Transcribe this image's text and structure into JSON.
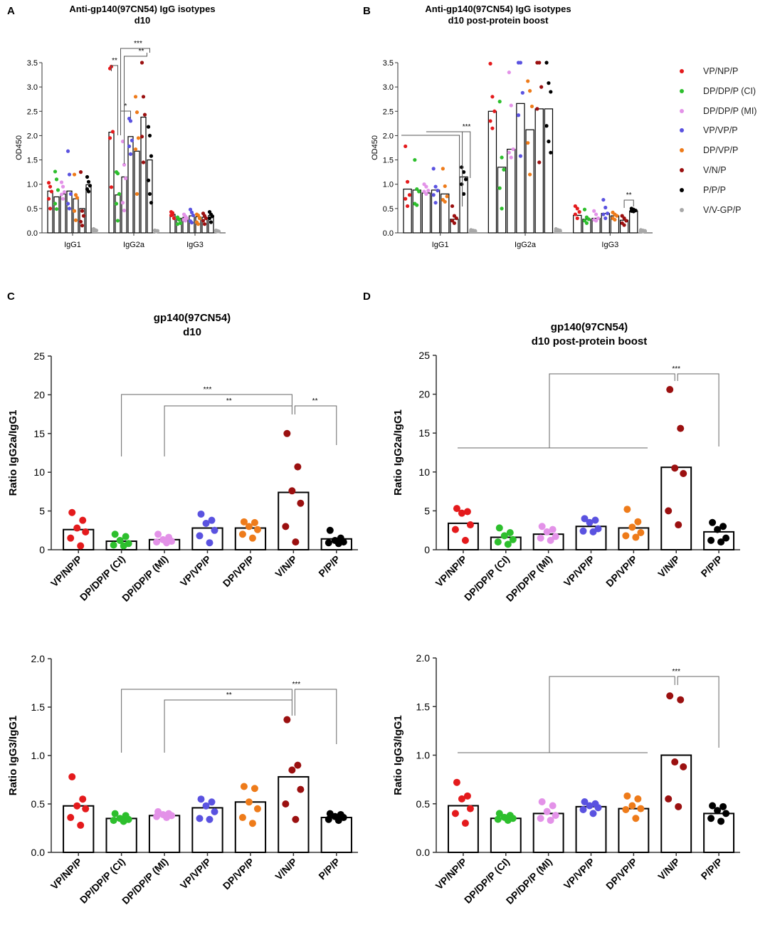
{
  "groups": [
    {
      "name": "VP/NP/P",
      "color": "#e41a1c"
    },
    {
      "name": "DP/DP/P (CI)",
      "color": "#2dbf2d"
    },
    {
      "name": "DP/DP/P (MI)",
      "color": "#e392e8"
    },
    {
      "name": "VP/VP/P",
      "color": "#5a52e0"
    },
    {
      "name": "DP/VP/P",
      "color": "#ee7b1a"
    },
    {
      "name": "V/N/P",
      "color": "#9b1010"
    },
    {
      "name": "P/P/P",
      "color": "#000000"
    },
    {
      "name": "V/V-GP/P",
      "color": "#a8a8a8"
    }
  ],
  "chart_data": [
    {
      "panel": "A",
      "type": "bar",
      "title": "Anti-gp140(97CN54) IgG isotypes",
      "subtitle": "d10",
      "ylabel": "OD450",
      "ylim": [
        0,
        3.5
      ],
      "yticks": [
        "0.0",
        "0.5",
        "1.0",
        "1.5",
        "2.0",
        "2.5",
        "3.0",
        "3.5"
      ],
      "categories": [
        "IgG1",
        "IgG2a",
        "IgG3"
      ],
      "series": [
        {
          "name": "VP/NP/P",
          "values": [
            0.86,
            2.07,
            0.38
          ],
          "points": [
            [
              1.03,
              0.95,
              0.85,
              0.7,
              0.5
            ],
            [
              3.38,
              3.42,
              2.08,
              1.95,
              0.94
            ],
            [
              0.43,
              0.37,
              0.3,
              0.36,
              0.41
            ]
          ]
        },
        {
          "name": "DP/DP/P (CI)",
          "values": [
            0.74,
            0.78,
            0.3
          ],
          "points": [
            [
              1.26,
              1.1,
              0.88,
              0.6,
              0.49
            ],
            [
              1.25,
              1.22,
              0.8,
              0.6,
              0.25
            ],
            [
              0.32,
              0.28,
              0.2,
              0.18,
              0.27
            ]
          ]
        },
        {
          "name": "DP/DP/P (MI)",
          "values": [
            0.8,
            1.15,
            0.32
          ],
          "points": [
            [
              1.04,
              0.95,
              0.84,
              0.79,
              0.7
            ],
            [
              1.88,
              1.4,
              1.12,
              0.62,
              0.46
            ],
            [
              0.38,
              0.34,
              0.3,
              0.27,
              0.25
            ]
          ]
        },
        {
          "name": "VP/VP/P",
          "values": [
            0.86,
            1.98,
            0.35
          ],
          "points": [
            [
              1.68,
              1.2,
              0.8,
              0.6,
              0.5
            ],
            [
              2.35,
              2.3,
              1.9,
              1.78,
              1.62
            ],
            [
              0.48,
              0.42,
              0.36,
              0.24,
              0.21
            ]
          ]
        },
        {
          "name": "DP/VP/P",
          "values": [
            0.7,
            1.68,
            0.33
          ],
          "points": [
            [
              1.2,
              0.78,
              0.72,
              0.45,
              0.26
            ],
            [
              2.8,
              2.48,
              1.95,
              1.72,
              0.8
            ],
            [
              0.38,
              0.36,
              0.3,
              0.22,
              0.18
            ]
          ]
        },
        {
          "name": "V/N/P",
          "values": [
            0.5,
            2.38,
            0.32
          ],
          "points": [
            [
              1.25,
              0.45,
              0.35,
              0.23,
              0.15
            ],
            [
              3.5,
              2.8,
              2.43,
              1.98,
              1.45
            ],
            [
              0.4,
              0.35,
              0.3,
              0.25,
              0.18
            ]
          ]
        },
        {
          "name": "P/P/P",
          "values": [
            0.99,
            1.5,
            0.36
          ],
          "points": [
            [
              1.15,
              1.05,
              0.97,
              0.9,
              0.85
            ],
            [
              2.18,
              2.0,
              1.58,
              1.08,
              0.8,
              0.62
            ],
            [
              0.43,
              0.38,
              0.34,
              0.3,
              0.22
            ]
          ]
        },
        {
          "name": "V/V-GP/P",
          "values": [
            0.05,
            0.04,
            0.03
          ],
          "points": [
            [
              0.08,
              0.06,
              0.05,
              0.04,
              0.05
            ],
            [
              0.05,
              0.04,
              0.04,
              0.05,
              0.03
            ],
            [
              0.05,
              0.04,
              0.03,
              0.04,
              0.03
            ]
          ]
        }
      ],
      "significance": [
        "**",
        "***",
        "**",
        "*"
      ]
    },
    {
      "panel": "B",
      "type": "bar",
      "title": "Anti-gp140(97CN54) IgG isotypes",
      "subtitle": "d10 post-protein boost",
      "ylabel": "OD450",
      "ylim": [
        0,
        3.5
      ],
      "yticks": [
        "0.0",
        "0.5",
        "1.0",
        "1.5",
        "2.0",
        "2.5",
        "3.0",
        "3.5"
      ],
      "categories": [
        "IgG1",
        "IgG2a",
        "IgG3"
      ],
      "series": [
        {
          "name": "VP/NP/P",
          "values": [
            0.9,
            2.5,
            0.36
          ],
          "points": [
            [
              1.78,
              1.05,
              0.78,
              0.7,
              0.55
            ],
            [
              3.48,
              2.8,
              2.5,
              2.3,
              2.15
            ],
            [
              0.55,
              0.5,
              0.43,
              0.38,
              0.3
            ]
          ]
        },
        {
          "name": "DP/DP/P (CI)",
          "values": [
            0.88,
            1.35,
            0.28
          ],
          "points": [
            [
              1.5,
              0.9,
              0.85,
              0.6,
              0.57
            ],
            [
              2.7,
              1.55,
              1.3,
              0.92,
              0.5
            ],
            [
              0.48,
              0.32,
              0.28,
              0.25,
              0.2
            ]
          ]
        },
        {
          "name": "DP/DP/P (MI)",
          "values": [
            0.82,
            1.72,
            0.3
          ],
          "points": [
            [
              1.0,
              0.95,
              0.87,
              0.85,
              0.8
            ],
            [
              3.3,
              2.62,
              1.72,
              1.65,
              1.55
            ],
            [
              0.45,
              0.38,
              0.3,
              0.27,
              0.25
            ]
          ]
        },
        {
          "name": "VP/VP/P",
          "values": [
            0.88,
            2.66,
            0.4
          ],
          "points": [
            [
              1.32,
              0.95,
              0.87,
              0.78,
              0.62
            ],
            [
              3.5,
              3.5,
              2.88,
              2.42,
              1.58
            ],
            [
              0.68,
              0.52,
              0.4,
              0.38,
              0.3
            ]
          ]
        },
        {
          "name": "DP/VP/P",
          "values": [
            0.8,
            2.12,
            0.35
          ],
          "points": [
            [
              1.32,
              0.96,
              0.75,
              0.68,
              0.64
            ],
            [
              3.12,
              2.92,
              2.6,
              1.85,
              1.2
            ],
            [
              0.42,
              0.38,
              0.35,
              0.3,
              0.27
            ]
          ]
        },
        {
          "name": "V/N/P",
          "values": [
            0.28,
            2.55,
            0.26
          ],
          "points": [
            [
              0.55,
              0.35,
              0.3,
              0.25,
              0.2
            ],
            [
              3.5,
              3.5,
              3.0,
              2.55,
              1.45
            ],
            [
              0.35,
              0.3,
              0.25,
              0.2,
              0.16
            ]
          ]
        },
        {
          "name": "P/P/P",
          "values": [
            1.15,
            2.55,
            0.45
          ],
          "points": [
            [
              1.35,
              1.25,
              1.1,
              1.0,
              0.8
            ],
            [
              3.5,
              3.08,
              2.9,
              2.2,
              1.88,
              1.65
            ],
            [
              0.5,
              0.48,
              0.46,
              0.45,
              0.44
            ]
          ]
        },
        {
          "name": "V/V-GP/P",
          "values": [
            0.05,
            0.06,
            0.05
          ],
          "points": [
            [
              0.06,
              0.05,
              0.04,
              0.05,
              0.04
            ],
            [
              0.08,
              0.06,
              0.05,
              0.04,
              0.05
            ],
            [
              0.06,
              0.05,
              0.04,
              0.05,
              0.03
            ]
          ]
        }
      ],
      "significance": [
        "***",
        "**"
      ]
    },
    {
      "panel": "C",
      "type": "bar",
      "title": "gp140(97CN54)",
      "subtitle": "d10",
      "ylabel": "Ratio IgG2a/IgG1",
      "ylim": [
        0,
        25
      ],
      "yticks": [
        "0",
        "5",
        "10",
        "15",
        "20",
        "25"
      ],
      "categories": [
        "VP/NP/P",
        "DP/DP/P (CI)",
        "DP/DP/P (MI)",
        "VP/VP/P",
        "DP/VP/P",
        "V/N/P",
        "P/P/P"
      ],
      "values": [
        2.6,
        1.1,
        1.3,
        2.8,
        2.8,
        7.4,
        1.4
      ],
      "points": [
        [
          4.8,
          3.8,
          2.8,
          2.3,
          1.5,
          0.5
        ],
        [
          2.0,
          1.7,
          1.2,
          0.8,
          0.6,
          0.5
        ],
        [
          2.0,
          1.6,
          1.3,
          1.1,
          1.0,
          0.9
        ],
        [
          4.6,
          3.8,
          3.4,
          2.5,
          1.8,
          0.9
        ],
        [
          3.6,
          3.5,
          3.0,
          2.6,
          2.0,
          1.5
        ],
        [
          15.0,
          10.7,
          7.6,
          6.0,
          3.0,
          1.0
        ],
        [
          2.5,
          1.5,
          1.2,
          1.0,
          0.9,
          0.8
        ]
      ],
      "significance": [
        "***",
        "**",
        "**"
      ]
    },
    {
      "panel": "D",
      "type": "bar",
      "title": "gp140(97CN54)",
      "subtitle": "d10 post-protein boost",
      "ylabel": "Ratio IgG2a/IgG1",
      "ylim": [
        0,
        25
      ],
      "yticks": [
        "0",
        "5",
        "10",
        "15",
        "20",
        "25"
      ],
      "categories": [
        "VP/NP/P",
        "DP/DP/P (CI)",
        "DP/DP/P (MI)",
        "VP/VP/P",
        "DP/VP/P",
        "V/N/P",
        "P/P/P"
      ],
      "values": [
        3.4,
        1.6,
        2.0,
        3.0,
        2.8,
        10.6,
        2.3
      ],
      "points": [
        [
          5.3,
          4.9,
          4.7,
          3.2,
          2.6,
          1.2
        ],
        [
          2.8,
          2.2,
          1.8,
          1.3,
          1.0,
          0.7
        ],
        [
          3.0,
          2.6,
          2.3,
          1.7,
          1.5,
          1.2
        ],
        [
          4.0,
          3.8,
          3.5,
          2.7,
          2.4,
          2.3
        ],
        [
          5.2,
          3.6,
          2.9,
          2.2,
          1.8,
          1.6
        ],
        [
          20.6,
          15.6,
          10.5,
          9.8,
          5.0,
          3.2
        ],
        [
          3.5,
          3.0,
          2.6,
          1.5,
          1.2,
          1.0
        ]
      ],
      "significance": [
        "***"
      ]
    },
    {
      "panel": "C2",
      "type": "bar",
      "title": "",
      "subtitle": "",
      "ylabel": "Ratio IgG3/IgG1",
      "ylim": [
        0,
        2.0
      ],
      "yticks": [
        "0.0",
        "0.5",
        "1.0",
        "1.5",
        "2.0"
      ],
      "categories": [
        "VP/NP/P",
        "DP/DP/P (CI)",
        "DP/DP/P (MI)",
        "VP/VP/P",
        "DP/VP/P",
        "V/N/P",
        "P/P/P"
      ],
      "values": [
        0.48,
        0.35,
        0.38,
        0.46,
        0.52,
        0.78,
        0.36
      ],
      "points": [
        [
          0.78,
          0.55,
          0.48,
          0.45,
          0.36,
          0.28
        ],
        [
          0.4,
          0.38,
          0.35,
          0.34,
          0.33,
          0.32
        ],
        [
          0.42,
          0.4,
          0.39,
          0.38,
          0.37,
          0.36
        ],
        [
          0.55,
          0.52,
          0.48,
          0.42,
          0.35,
          0.34
        ],
        [
          0.68,
          0.66,
          0.52,
          0.45,
          0.36,
          0.3
        ],
        [
          1.37,
          0.9,
          0.85,
          0.65,
          0.5,
          0.34
        ],
        [
          0.4,
          0.39,
          0.37,
          0.36,
          0.34,
          0.33
        ]
      ],
      "significance": [
        "**",
        "***"
      ]
    },
    {
      "panel": "D2",
      "type": "bar",
      "title": "",
      "subtitle": "",
      "ylabel": "Ratio IgG3/IgG1",
      "ylim": [
        0,
        2.0
      ],
      "yticks": [
        "0.0",
        "0.5",
        "1.0",
        "1.5",
        "2.0"
      ],
      "categories": [
        "VP/NP/P",
        "DP/DP/P (CI)",
        "DP/DP/P (MI)",
        "VP/VP/P",
        "DP/VP/P",
        "V/N/P",
        "P/P/P"
      ],
      "values": [
        0.48,
        0.35,
        0.4,
        0.47,
        0.45,
        1.0,
        0.4
      ],
      "points": [
        [
          0.72,
          0.58,
          0.55,
          0.45,
          0.4,
          0.3
        ],
        [
          0.4,
          0.38,
          0.36,
          0.35,
          0.34,
          0.33
        ],
        [
          0.52,
          0.48,
          0.42,
          0.38,
          0.35,
          0.33
        ],
        [
          0.52,
          0.5,
          0.48,
          0.46,
          0.44,
          0.4
        ],
        [
          0.58,
          0.55,
          0.48,
          0.45,
          0.44,
          0.35
        ],
        [
          1.61,
          1.57,
          0.93,
          0.88,
          0.55,
          0.47
        ],
        [
          0.48,
          0.47,
          0.43,
          0.4,
          0.35,
          0.32
        ]
      ],
      "significance": [
        "***"
      ]
    }
  ]
}
